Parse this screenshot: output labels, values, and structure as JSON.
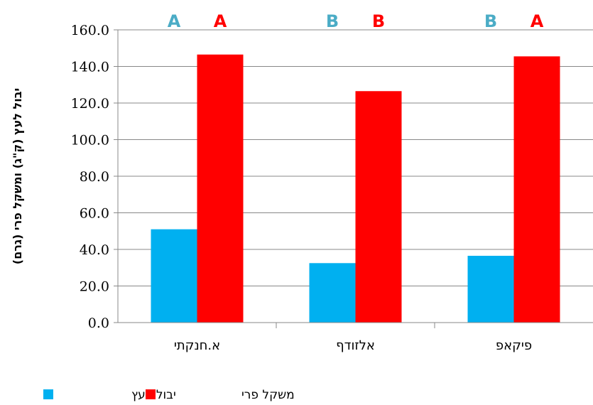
{
  "chart_data": {
    "type": "bar",
    "categories": [
      "א.חנקתי",
      "אלזודף",
      "פיקאפ"
    ],
    "series": [
      {
        "name": "יבול לעץ",
        "color": "#00B0F0",
        "values": [
          51.0,
          32.5,
          36.5
        ]
      },
      {
        "name": "משקל פרי",
        "color": "#FF0000",
        "values": [
          146.5,
          126.5,
          145.5
        ]
      }
    ],
    "significance": [
      {
        "series": "יבול לעץ",
        "color": "#4BACC6",
        "letters": [
          "A",
          "B",
          "B"
        ]
      },
      {
        "series": "משקל פרי",
        "color": "#FF0000",
        "letters": [
          "A",
          "B",
          "A"
        ]
      }
    ],
    "yticks": [
      "0.0",
      "20.0",
      "40.0",
      "60.0",
      "80.0",
      "100.0",
      "120.0",
      "140.0",
      "160.0"
    ],
    "ylabel": "יבול לעץ (ק\"ג) ומשקל פרי (גרם)",
    "ylim": [
      0,
      160
    ],
    "grid": true,
    "legend": "bottom-right"
  }
}
